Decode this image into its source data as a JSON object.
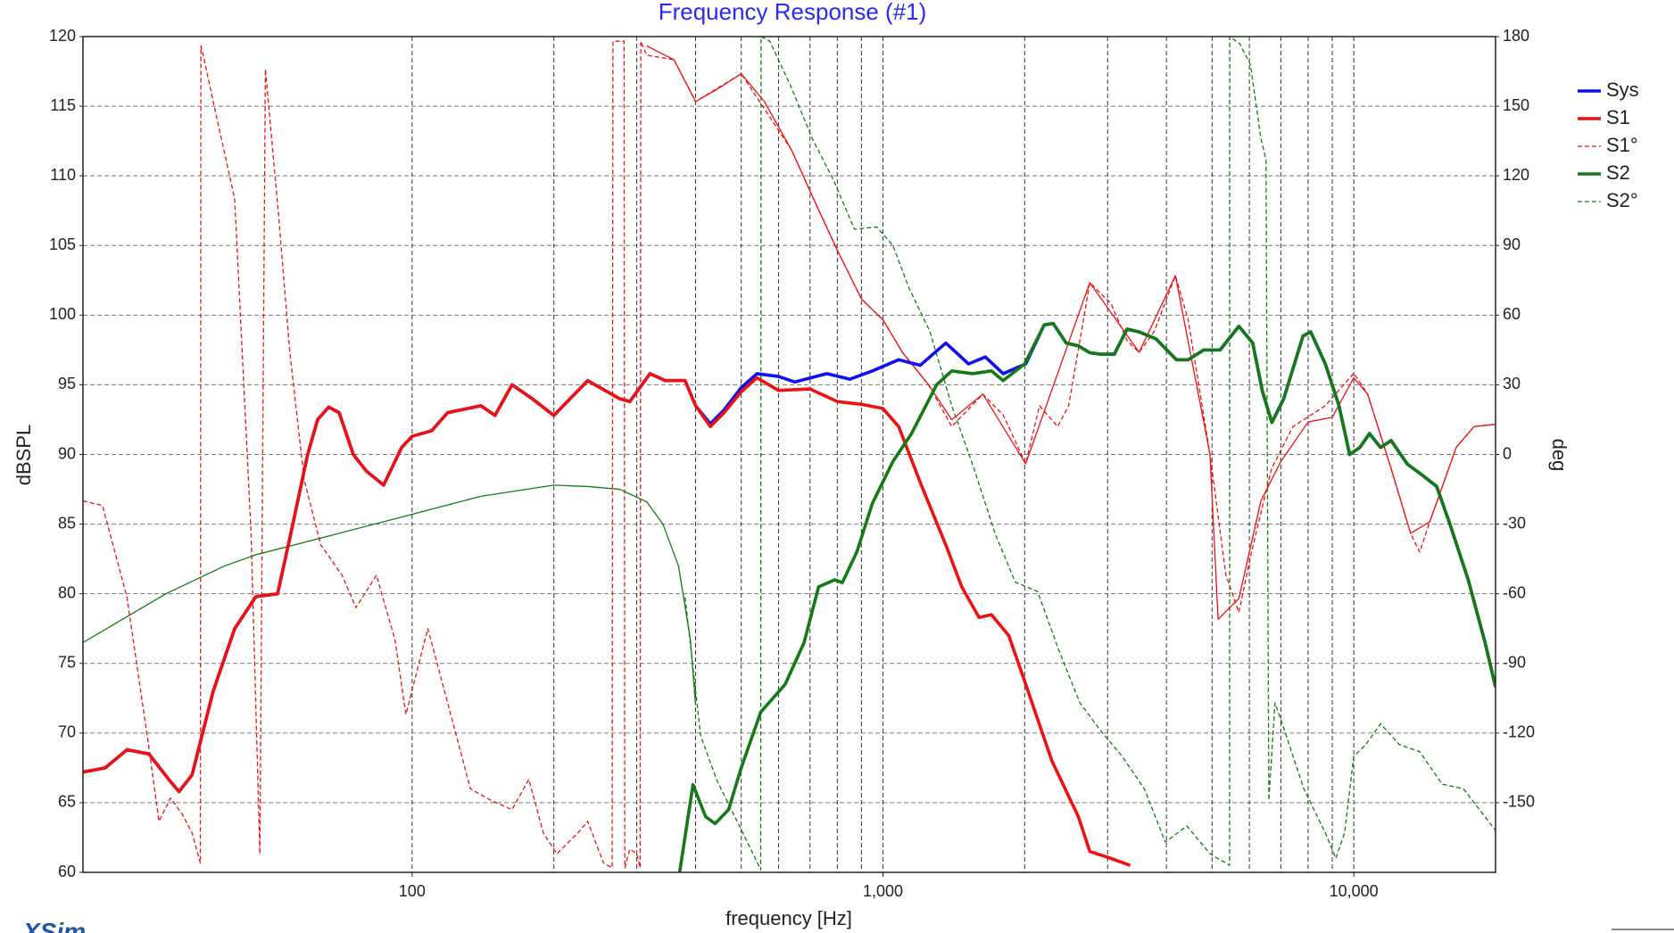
{
  "chart_data": {
    "type": "line",
    "title": "Frequency Response (#1)",
    "x_label": "frequency [Hz]",
    "y_label": "dBSPL",
    "y2_label": "deg",
    "watermark": "XSim",
    "xscale": "log",
    "xlim": [
      20,
      20000
    ],
    "xticks": [
      100,
      {
        "value": 1000,
        "label": "1,000"
      },
      {
        "value": 10000,
        "label": "10,000"
      }
    ],
    "x_minor_grid": [
      200,
      300,
      400,
      500,
      600,
      700,
      800,
      900,
      2000,
      3000,
      4000,
      5000,
      6000,
      7000,
      8000,
      9000,
      20000
    ],
    "ylim": [
      60,
      120
    ],
    "yticks": [
      60,
      65,
      70,
      75,
      80,
      85,
      90,
      95,
      100,
      105,
      110,
      115,
      120
    ],
    "y2lim": [
      -180,
      180
    ],
    "y2ticks": [
      -150,
      -120,
      -90,
      -60,
      -30,
      0,
      30,
      60,
      90,
      120,
      150,
      180
    ],
    "grid": true,
    "legend": "right",
    "series": [
      {
        "name": "Sys",
        "color": "#1010f0",
        "linestyle": "solid",
        "linewidth": "thick",
        "x": [
          20,
          22.3,
          24.8,
          27.6,
          30.7,
          32,
          34.1,
          37.8,
          42,
          46.6,
          51.8,
          55,
          60,
          63,
          66.5,
          70,
          75,
          80,
          87,
          95,
          100,
          110,
          119,
          140,
          150,
          163,
          180,
          200,
          236,
          276,
          290,
          320,
          345,
          380,
          400,
          430,
          460,
          500,
          540,
          600,
          650,
          760,
          850,
          950,
          1080,
          1200,
          1360,
          1520,
          1650,
          1800,
          2010,
          2200,
          2300,
          2450,
          2600,
          2750,
          2900,
          3100,
          3300,
          3500,
          3800,
          4200,
          4450,
          4800,
          5200,
          5700,
          6100,
          6400,
          6700,
          7100,
          7800,
          8100,
          8700,
          9300,
          9800,
          10300,
          10800,
          11400,
          12000,
          13000,
          14000,
          15000,
          16000,
          17500,
          19000,
          20000
        ],
        "values": [
          67.2,
          67.5,
          68.8,
          68.5,
          66.5,
          65.8,
          67,
          73,
          77.5,
          79.8,
          80,
          84,
          90,
          92.5,
          93.4,
          93,
          90,
          88.8,
          87.8,
          90.5,
          91.3,
          91.7,
          93,
          93.5,
          92.8,
          95,
          94,
          92.8,
          95.3,
          94,
          93.8,
          95.8,
          95.3,
          95.3,
          93.5,
          92.2,
          93.2,
          94.8,
          95.8,
          95.6,
          95.2,
          95.8,
          95.4,
          96,
          96.8,
          96.4,
          98,
          96.5,
          97,
          95.8,
          96.5,
          99.3,
          99.4,
          98,
          97.8,
          97.3,
          97.2,
          97.2,
          99,
          98.8,
          98.3,
          96.8,
          96.8,
          97.5,
          97.5,
          99.2,
          98,
          94.5,
          92.3,
          94,
          98.5,
          98.8,
          96.5,
          93.5,
          90,
          90.5,
          91.5,
          90.5,
          91,
          89.3,
          88.5,
          87.7,
          85,
          81,
          76.5,
          73.3
        ]
      },
      {
        "name": "S1",
        "color": "#ee1111",
        "linestyle": "solid",
        "linewidth": "thick",
        "x": [
          20,
          22.3,
          24.8,
          27.6,
          30.7,
          32,
          34.1,
          37.8,
          42,
          46.6,
          51.8,
          55,
          60,
          63,
          66.5,
          70,
          75,
          80,
          87,
          95,
          100,
          110,
          119,
          140,
          150,
          163,
          180,
          200,
          236,
          276,
          290,
          320,
          345,
          380,
          400,
          430,
          460,
          500,
          540,
          600,
          700,
          800,
          900,
          1000,
          1080,
          1200,
          1360,
          1470,
          1600,
          1700,
          1850,
          2010,
          2285,
          2600,
          2750,
          3050,
          3350
        ],
        "values": [
          67.2,
          67.5,
          68.8,
          68.5,
          66.5,
          65.8,
          67,
          73,
          77.5,
          79.8,
          80,
          84,
          90,
          92.5,
          93.4,
          93,
          90,
          88.8,
          87.8,
          90.5,
          91.3,
          91.7,
          93,
          93.5,
          92.8,
          95,
          94,
          92.8,
          95.3,
          94,
          93.8,
          95.8,
          95.3,
          95.3,
          93.5,
          92,
          93,
          94.5,
          95.5,
          94.6,
          94.7,
          93.8,
          93.6,
          93.3,
          92,
          88,
          83.5,
          80.5,
          78.3,
          78.5,
          77,
          73.5,
          68,
          64,
          61.5,
          61,
          60.5
        ]
      },
      {
        "name": "S1°",
        "color": "#ee1111",
        "linestyle": "dashed",
        "linewidth": "thin",
        "axis": "y2",
        "x": [
          20,
          22,
          24.8,
          27.6,
          29,
          30.7,
          32.5,
          34.1,
          35.5,
          35.6,
          36,
          38,
          42,
          45.5,
          47.5,
          48.8,
          52,
          55,
          59,
          64,
          71,
          76,
          84,
          92,
          97,
          108,
          119,
          133,
          147,
          163,
          177,
          190,
          203,
          225,
          236,
          255,
          266,
          267,
          272,
          282,
          283,
          290,
          300,
          305,
          306,
          315,
          360,
          400,
          500,
          640,
          720,
          800,
          900,
          1000,
          1100,
          1250,
          1400,
          1630,
          1800,
          2010,
          2150,
          2350,
          2480,
          2750,
          3050,
          3300,
          3500,
          3770,
          4180,
          4450,
          4950,
          5350,
          5700,
          6050,
          6690,
          7430,
          8700,
          10000,
          10700,
          12000,
          13200,
          13800,
          14500,
          16500,
          18000,
          20000
        ],
        "values": [
          -20,
          -22,
          -61.5,
          -126,
          -158,
          -148,
          -155,
          -163,
          -176,
          176,
          172,
          150,
          110,
          -34,
          -172,
          166,
          104,
          44,
          -11,
          -39,
          -52,
          -66,
          -52,
          -80,
          -112,
          -75,
          -107,
          -144,
          -149,
          -153,
          -140,
          -163,
          -172,
          -163,
          -158,
          -176,
          -178,
          178,
          178,
          178,
          -178,
          -170,
          -172,
          -178,
          178,
          172,
          170,
          152,
          164,
          131,
          108,
          88,
          67,
          58,
          44,
          30,
          12,
          26,
          17,
          -4,
          21,
          12,
          21,
          74,
          65,
          49,
          44,
          53,
          77,
          58,
          0,
          -52,
          -68,
          -43,
          -6,
          12,
          21,
          35,
          26,
          -6,
          -34,
          -42,
          -29,
          3,
          12,
          13
        ]
      },
      {
        "name": "S2",
        "color": "#157a15",
        "linestyle": "solid",
        "linewidth": "thick",
        "x": [
          370,
          395,
          420,
          440,
          470,
          500,
          550,
          620,
          680,
          730,
          790,
          820,
          880,
          950,
          1050,
          1150,
          1300,
          1400,
          1550,
          1700,
          1800,
          2000,
          2200,
          2300,
          2450,
          2600,
          2750,
          2900,
          3100,
          3300,
          3500,
          3800,
          4200,
          4450,
          4800,
          5200,
          5700,
          6100,
          6400,
          6700,
          7100,
          7800,
          8100,
          8700,
          9300,
          9800,
          10300,
          10800,
          11400,
          12000,
          13000,
          14000,
          15000,
          16000,
          17500,
          19000,
          20000
        ],
        "values": [
          60,
          66.3,
          64,
          63.5,
          64.5,
          67.5,
          71.5,
          73.5,
          76.5,
          80.5,
          81,
          80.8,
          83,
          86.5,
          89.5,
          91.5,
          95,
          96,
          95.8,
          96,
          95.3,
          96.5,
          99.3,
          99.4,
          98,
          97.8,
          97.3,
          97.2,
          97.2,
          99,
          98.8,
          98.3,
          96.8,
          96.8,
          97.5,
          97.5,
          99.2,
          98,
          94.5,
          92.3,
          94,
          98.5,
          98.8,
          96.5,
          93.5,
          90,
          90.5,
          91.5,
          90.5,
          91,
          89.3,
          88.5,
          87.7,
          85,
          81,
          76.5,
          73.3
        ]
      },
      {
        "name": "S2°",
        "color": "#157a15",
        "linestyle": "dashed",
        "linewidth": "thin",
        "axis": "y2",
        "x": [
          380,
          410,
          443,
          490,
          530,
          550,
          551,
          575,
          636,
          708,
          786,
          870,
          970,
          1050,
          1134,
          1258,
          1400,
          1560,
          1730,
          1910,
          2130,
          2360,
          2620,
          2900,
          3220,
          3590,
          3980,
          4420,
          4950,
          5450,
          5451,
          5720,
          6030,
          6350,
          6510,
          6600,
          6800,
          7050,
          7830,
          8700,
          9160,
          9560,
          10000,
          10600,
          11400,
          12500,
          13800,
          15400,
          17100,
          20000
        ],
        "values": [
          -61.5,
          -121,
          -140,
          -158,
          -172,
          -179,
          180,
          178,
          159,
          136,
          118,
          97,
          98,
          90,
          72,
          53,
          21,
          -6,
          -34,
          -55,
          -59,
          -84,
          -107,
          -119,
          -130,
          -144,
          -167,
          -160,
          -172,
          -177,
          180,
          177,
          168,
          136,
          127,
          -149,
          -107,
          -116,
          -144,
          -163,
          -174,
          -163,
          -130,
          -125,
          -116,
          -125,
          -128,
          -142,
          -144,
          -162
        ]
      },
      {
        "color": "#ee1111",
        "linestyle": "solid",
        "linewidth": "thin",
        "axis": "y2",
        "x": [
          315,
          360,
          400,
          450,
          500,
          560,
          640,
          720,
          800,
          900,
          1000,
          1100,
          1250,
          1400,
          1630,
          2010,
          2750,
          3500,
          4180,
          4950,
          5150,
          5700,
          6350,
          7000,
          8000,
          9000,
          10000,
          10700,
          12000,
          13200,
          14500,
          16500,
          18000,
          20000
        ],
        "values": [
          176,
          170,
          152,
          158,
          164,
          152,
          131,
          108,
          88,
          67,
          58,
          44,
          30,
          15,
          26,
          -4,
          74,
          44,
          77,
          0,
          -71,
          -62,
          -20,
          -3,
          14,
          16,
          33,
          26,
          -6,
          -34,
          -29,
          3,
          12,
          13
        ]
      },
      {
        "color": "#157a15",
        "linestyle": "solid",
        "linewidth": "thin",
        "x": [
          20,
          30,
          40,
          46.6,
          64,
          100,
          140,
          200,
          236,
          276,
          315,
          341,
          368,
          390,
          400
        ],
        "values": [
          76.5,
          80,
          82,
          82.8,
          84,
          85.7,
          87,
          87.8,
          87.7,
          87.5,
          86.6,
          85,
          82,
          76.7,
          72
        ]
      }
    ]
  }
}
